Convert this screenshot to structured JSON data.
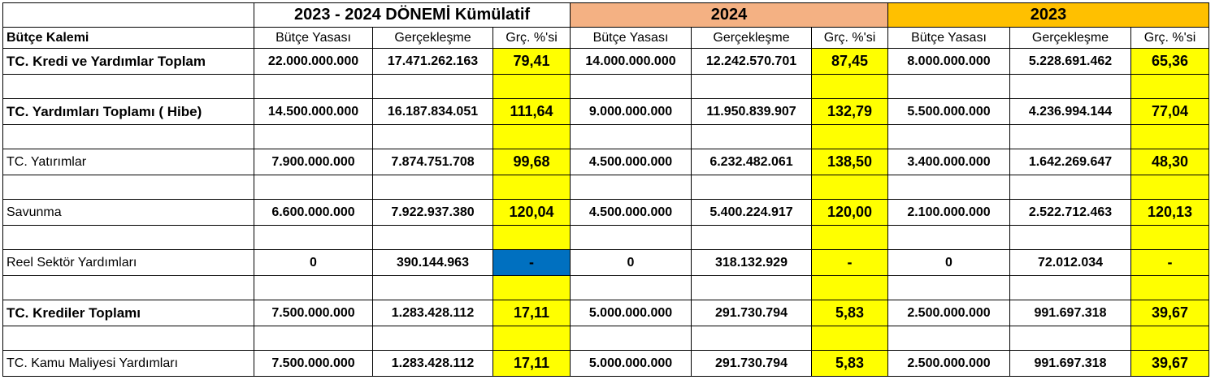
{
  "headers": {
    "cumulative": "2023 - 2024 DÖNEMİ Kümülatif",
    "year_2024": "2024",
    "year_2023": "2023"
  },
  "subheaders": {
    "item": "Bütçe Kalemi",
    "budget": "Bütçe Yasası",
    "actual": "Gerçekleşme",
    "pct": "Grç. %'si"
  },
  "rows": [
    {
      "label": "TC. Kredi ve Yardımlar Toplam",
      "bold": true,
      "c_budget": "22.000.000.000",
      "c_actual": "17.471.262.163",
      "c_pct": "79,41",
      "y24_budget": "14.000.000.000",
      "y24_actual": "12.242.570.701",
      "y24_pct": "87,45",
      "y23_budget": "8.000.000.000",
      "y23_actual": "5.228.691.462",
      "y23_pct": "65,36"
    },
    {
      "label": "TC. Yardımları Toplamı ( Hibe)",
      "bold": true,
      "c_budget": "14.500.000.000",
      "c_actual": "16.187.834.051",
      "c_pct": "111,64",
      "y24_budget": "9.000.000.000",
      "y24_actual": "11.950.839.907",
      "y24_pct": "132,79",
      "y23_budget": "5.500.000.000",
      "y23_actual": "4.236.994.144",
      "y23_pct": "77,04"
    },
    {
      "label": "TC. Yatırımlar",
      "bold": false,
      "c_budget": "7.900.000.000",
      "c_actual": "7.874.751.708",
      "c_pct": "99,68",
      "y24_budget": "4.500.000.000",
      "y24_actual": "6.232.482.061",
      "y24_pct": "138,50",
      "y23_budget": "3.400.000.000",
      "y23_actual": "1.642.269.647",
      "y23_pct": "48,30"
    },
    {
      "label": "Savunma",
      "bold": false,
      "c_budget": "6.600.000.000",
      "c_actual": "7.922.937.380",
      "c_pct": "120,04",
      "y24_budget": "4.500.000.000",
      "y24_actual": "5.400.224.917",
      "y24_pct": "120,00",
      "y23_budget": "2.100.000.000",
      "y23_actual": "2.522.712.463",
      "y23_pct": "120,13"
    },
    {
      "label": "Reel Sektör Yardımları",
      "bold": false,
      "c_budget": "0",
      "c_actual": "390.144.963",
      "c_pct": "-",
      "y24_budget": "0",
      "y24_actual": "318.132.929",
      "y24_pct": "-",
      "y23_budget": "0",
      "y23_actual": "72.012.034",
      "y23_pct": "-"
    },
    {
      "label": "TC. Krediler Toplamı",
      "bold": true,
      "c_budget": "7.500.000.000",
      "c_actual": "1.283.428.112",
      "c_pct": "17,11",
      "y24_budget": "5.000.000.000",
      "y24_actual": "291.730.794",
      "y24_pct": "5,83",
      "y23_budget": "2.500.000.000",
      "y23_actual": "991.697.318",
      "y23_pct": "39,67"
    },
    {
      "label": "TC. Kamu Maliyesi Yardımları",
      "bold": false,
      "c_budget": "7.500.000.000",
      "c_actual": "1.283.428.112",
      "c_pct": "17,11",
      "y24_budget": "5.000.000.000",
      "y24_actual": "291.730.794",
      "y24_pct": "5,83",
      "y23_budget": "2.500.000.000",
      "y23_actual": "991.697.318",
      "y23_pct": "39,67"
    }
  ],
  "colors": {
    "pct_highlight": "#ffff00",
    "selected_cell": "#0070c0",
    "header_2024": "#f4b183",
    "header_2023": "#ffc000"
  }
}
